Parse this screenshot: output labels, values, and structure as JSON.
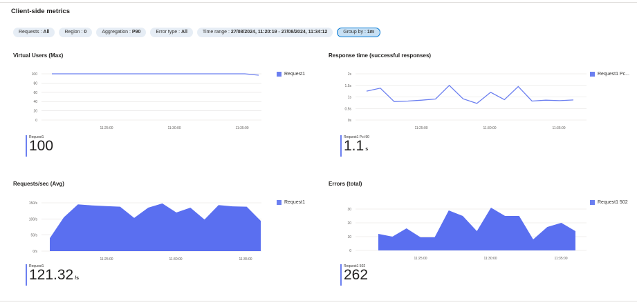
{
  "section": {
    "title": "Client-side metrics"
  },
  "filters": [
    {
      "label": "Requests",
      "value": "All",
      "active": false
    },
    {
      "label": "Region",
      "value": "0",
      "active": false
    },
    {
      "label": "Aggregation",
      "value": "P90",
      "active": false
    },
    {
      "label": "Error type",
      "value": "All",
      "active": false
    },
    {
      "label": "Time range",
      "value": "27/08/2024, 11:20:19 - 27/08/2024, 11:34:12",
      "active": false
    },
    {
      "label": "Group by",
      "value": "1m",
      "active": true
    }
  ],
  "colors": {
    "series": "#6b7ff0",
    "fill": "#5a6ff0",
    "grid": "#e1dfdd",
    "pill": "#e6edf5"
  },
  "charts": {
    "vu": {
      "title": "Virtual Users (Max)",
      "legend": "Request1",
      "kpi": {
        "name": "Request1",
        "value": "100",
        "unit": ""
      }
    },
    "rt": {
      "title": "Response time (successful responses)",
      "legend": "Request1 Pc...",
      "kpi": {
        "name": "Request1 Pct 90",
        "value": "1.1",
        "unit": "s"
      }
    },
    "rps": {
      "title": "Requests/sec (Avg)",
      "legend": "Request1",
      "kpi": {
        "name": "Request1",
        "value": "121.32",
        "unit": "/s"
      }
    },
    "err": {
      "title": "Errors (total)",
      "legend": "Request1 502",
      "kpi": {
        "name": "Request1 502",
        "value": "262",
        "unit": ""
      }
    }
  },
  "chart_data": [
    {
      "id": "vu",
      "type": "line",
      "x_ticks": [
        "11:25:00",
        "11:30:00",
        "11:35:00"
      ],
      "y_ticks": [
        "100",
        "80",
        "60",
        "40",
        "20",
        "0"
      ],
      "ylim": [
        0,
        100
      ],
      "series": [
        {
          "name": "Request1",
          "values": [
            100,
            100,
            100,
            100,
            100,
            100,
            100,
            100,
            100,
            100,
            100,
            100,
            100,
            100,
            100,
            97
          ]
        }
      ]
    },
    {
      "id": "rt",
      "type": "line",
      "x_ticks": [
        "11:25:00",
        "11:30:00",
        "11:35:00"
      ],
      "y_ticks": [
        "2s",
        "1.5s",
        "1s",
        "0.5s",
        "0s"
      ],
      "ylim": [
        0,
        2
      ],
      "series": [
        {
          "name": "Request1 Pc...",
          "values": [
            1.25,
            1.38,
            0.8,
            0.82,
            0.86,
            0.91,
            1.5,
            0.92,
            0.72,
            1.2,
            0.88,
            1.45,
            0.82,
            0.86,
            0.84,
            0.87
          ]
        }
      ]
    },
    {
      "id": "rps",
      "type": "area",
      "x_ticks": [
        "11:25:00",
        "11:30:00",
        "11:35:00"
      ],
      "y_ticks": [
        "150/s",
        "100/s",
        "50/s",
        "0/s"
      ],
      "ylim": [
        0,
        150
      ],
      "series": [
        {
          "name": "Request1",
          "values": [
            40,
            105,
            145,
            142,
            140,
            138,
            103,
            135,
            148,
            120,
            135,
            98,
            143,
            139,
            138,
            94
          ]
        }
      ]
    },
    {
      "id": "err",
      "type": "area",
      "x_ticks": [
        "11:25:00",
        "11:30:00",
        "11:35:00"
      ],
      "y_ticks": [
        "30",
        "20",
        "10",
        "0"
      ],
      "ylim": [
        0,
        30
      ],
      "series": [
        {
          "name": "Request1 502",
          "values": [
            12,
            10,
            16,
            9.5,
            9.5,
            29,
            25,
            14,
            31,
            25,
            25,
            8,
            17,
            20,
            14
          ]
        }
      ]
    }
  ]
}
